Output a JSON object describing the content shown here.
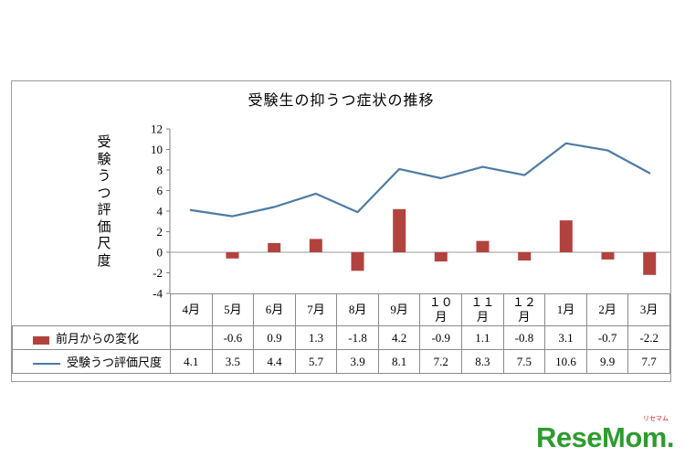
{
  "title": "受験生の抑うつ症状の推移",
  "y_axis_label": "受\n験\nう\nつ\n評\n価\n尺\n度",
  "logo": {
    "text": "ReseMom",
    "suffix": ".",
    "small_text": "リセマム"
  },
  "chart_data": {
    "type": "bar+line",
    "title": "受験生の抑うつ症状の推移",
    "ylabel": "受験うつ評価尺度",
    "categories": [
      "4月",
      "5月",
      "6月",
      "7月",
      "8月",
      "9月",
      "１０\n月",
      "１１\n月",
      "１２\n月",
      "1月",
      "2月",
      "3月"
    ],
    "series": [
      {
        "name": "前月からの変化",
        "type": "bar",
        "color": "#b2423e",
        "values": [
          null,
          -0.6,
          0.9,
          1.3,
          -1.8,
          4.2,
          -0.9,
          1.1,
          -0.8,
          3.1,
          -0.7,
          -2.2
        ]
      },
      {
        "name": "受験うつ評価尺度",
        "type": "line",
        "color": "#4d7ba5",
        "values": [
          4.1,
          3.5,
          4.4,
          5.7,
          3.9,
          8.1,
          7.2,
          8.3,
          7.5,
          10.6,
          9.9,
          7.7
        ]
      }
    ],
    "ylim": [
      -4,
      12
    ],
    "ytick_step": 2,
    "legend_position": "table-left",
    "grid": false
  }
}
